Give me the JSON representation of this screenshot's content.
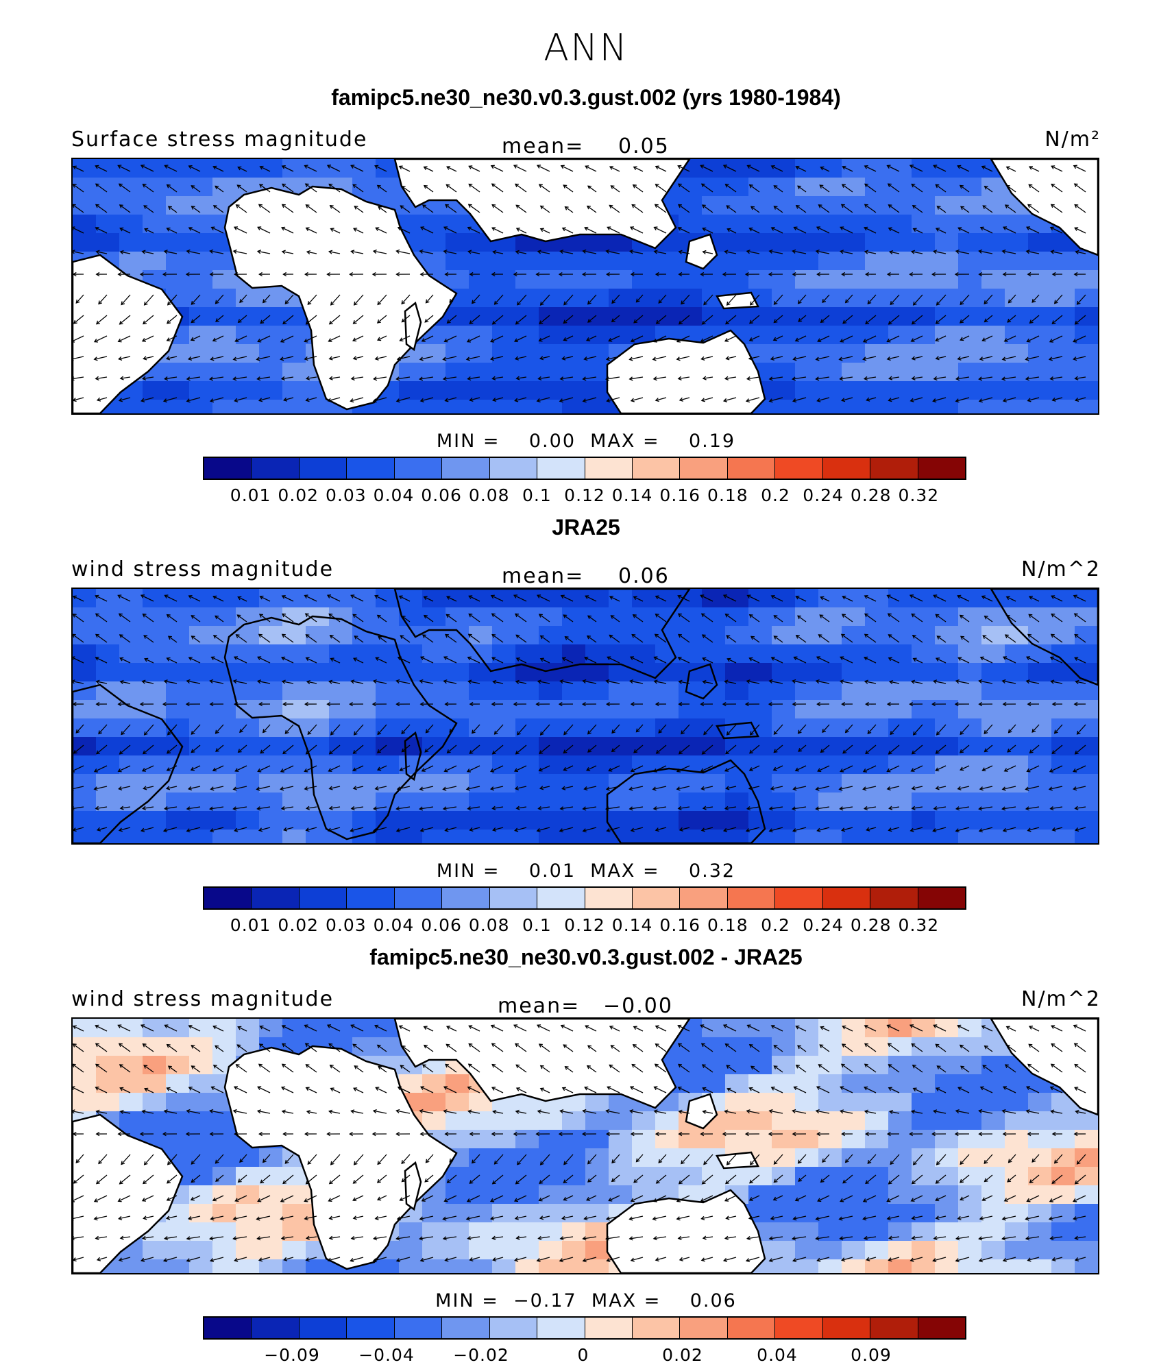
{
  "figure_title": "ANN",
  "panels": [
    {
      "title": "famipc5.ne30_ne30.v0.3.gust.002 (yrs 1980-1984)",
      "left_label": "Surface stress magnitude",
      "mean_label": "mean=",
      "mean_value": "0.05",
      "units": "N/m²",
      "stats": "MIN =    0.00  MAX =    0.19",
      "colorbar_ticks": [
        "0.01",
        "0.02",
        "0.03",
        "0.04",
        "0.06",
        "0.08",
        "0.1",
        "0.12",
        "0.14",
        "0.16",
        "0.18",
        "0.2",
        "0.24",
        "0.28",
        "0.32"
      ],
      "style": "model"
    },
    {
      "title": "JRA25",
      "left_label": "wind stress magnitude",
      "mean_label": "mean=",
      "mean_value": "0.06",
      "units": "N/m^2",
      "stats": "MIN =    0.01  MAX =    0.32",
      "colorbar_ticks": [
        "0.01",
        "0.02",
        "0.03",
        "0.04",
        "0.06",
        "0.08",
        "0.1",
        "0.12",
        "0.14",
        "0.16",
        "0.18",
        "0.2",
        "0.24",
        "0.28",
        "0.32"
      ],
      "style": "obs"
    },
    {
      "title": "famipc5.ne30_ne30.v0.3.gust.002 - JRA25",
      "left_label": "wind stress magnitude",
      "mean_label": "mean=",
      "mean_value": "−0.00",
      "units": "N/m^2",
      "stats": "MIN =  −0.17  MAX =    0.06",
      "colorbar_ticks": [
        "−0.09",
        "−0.04",
        "−0.02",
        "0",
        "0.02",
        "0.04",
        "0.09"
      ],
      "style": "diff"
    }
  ],
  "colorbar_colors": [
    "#08088a",
    "#0a25b5",
    "#0d3fd6",
    "#1a55e8",
    "#3a6ff0",
    "#6f96f0",
    "#a6c0f5",
    "#d3e3fa",
    "#fde3d2",
    "#fcc4a6",
    "#f9a07e",
    "#f57650",
    "#ef4a24",
    "#d9300f",
    "#b01e0a",
    "#850505"
  ]
}
